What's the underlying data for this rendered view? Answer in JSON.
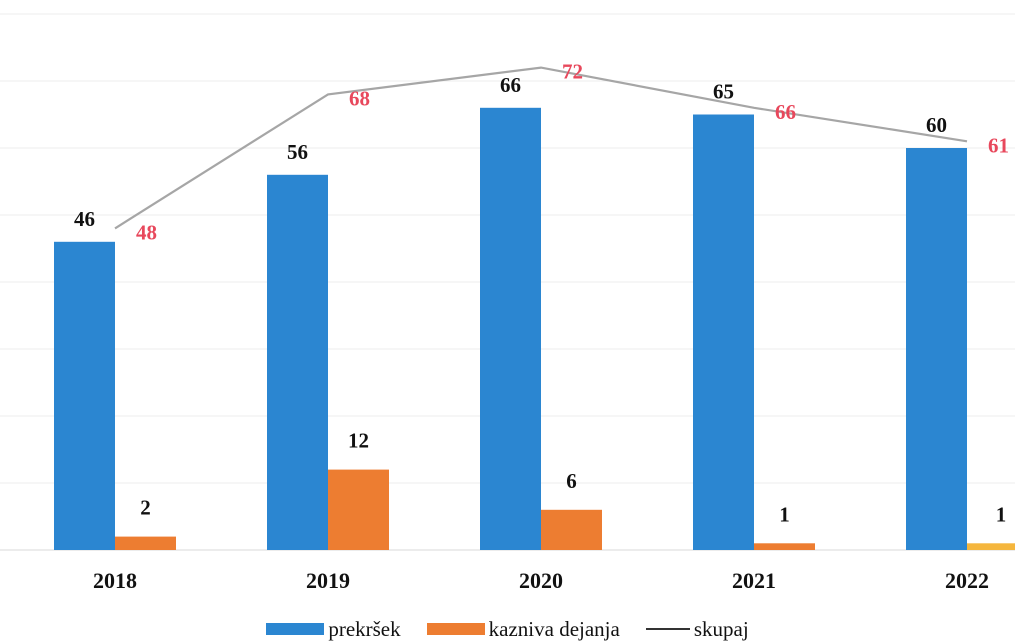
{
  "colors": {
    "prekrsek": "#2b86d1",
    "kazniva_dejanja": "#ed7d31",
    "kazniva_dejanja_last": "#f5b63d",
    "skupaj_line": "#a6a6a6",
    "skupaj_label": "#e8485c",
    "label_dark": "#111111"
  },
  "chart_data": {
    "type": "bar",
    "title": "",
    "xlabel": "",
    "ylabel": "",
    "ylim": [
      0,
      80
    ],
    "grid": true,
    "legend_position": "bottom",
    "categories": [
      "2018",
      "2019",
      "2020",
      "2021",
      "2022"
    ],
    "series": [
      {
        "name": "prekršek",
        "type": "bar",
        "values": [
          46,
          56,
          66,
          65,
          60
        ]
      },
      {
        "name": "kazniva dejanja",
        "type": "bar",
        "values": [
          2,
          12,
          6,
          1,
          1
        ]
      },
      {
        "name": "skupaj",
        "type": "line",
        "values": [
          48,
          68,
          72,
          66,
          61
        ]
      }
    ]
  },
  "legend": {
    "prekrsek": "prekršek",
    "kazniva_dejanja": "kazniva dejanja",
    "skupaj": "skupaj"
  }
}
